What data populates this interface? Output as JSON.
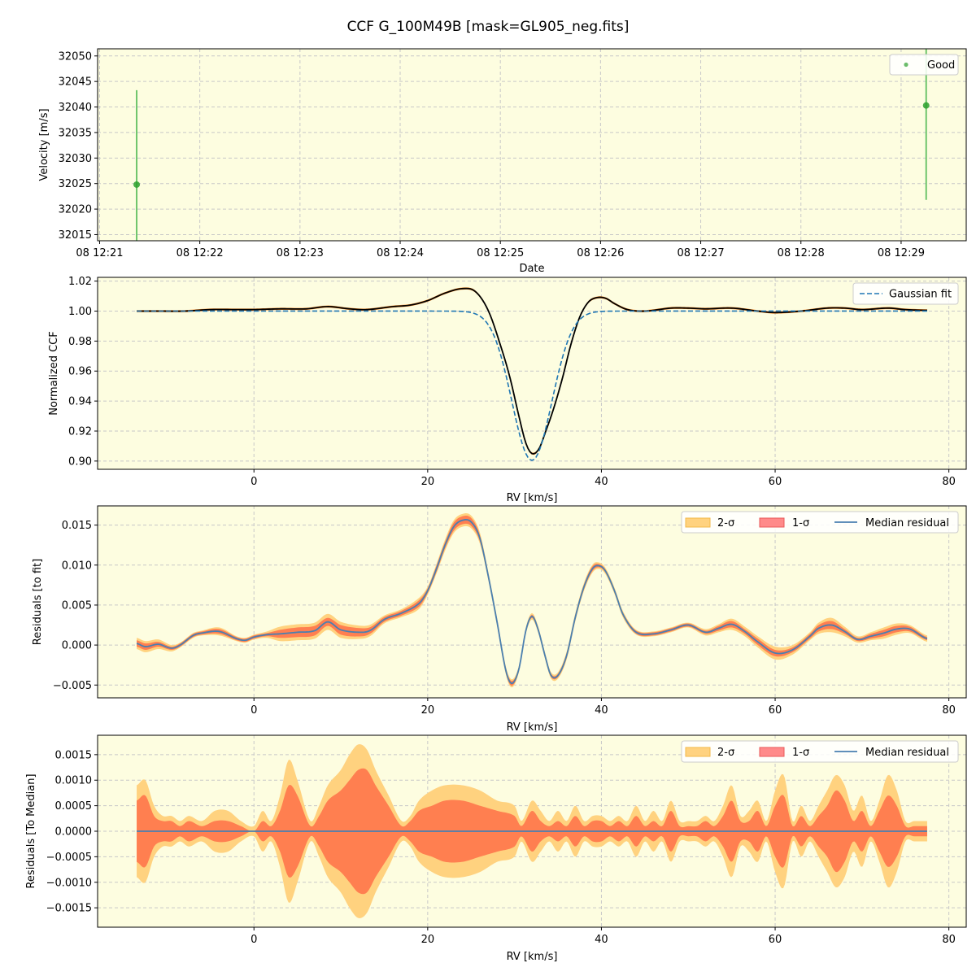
{
  "figure_title": "CCF G_100M49B [mask=GL905_neg.fits]",
  "colors": {
    "panel_bg": "#fdfde0",
    "good": "#2ca02c",
    "good_err": "#5fbf5f",
    "ccf_line": "#000000",
    "ccf_band": "#ff7f0e",
    "gauss": "#1f77b4",
    "band2": "#ffd27f",
    "band1": "#ff7f50",
    "median": "#4a7fb0",
    "grid": "#c8c8c8"
  },
  "chart_data": [
    {
      "type": "scatter",
      "xlabel": "Date",
      "ylabel": "Velocity [m/s]",
      "xticks": [
        "08 12:21",
        "08 12:22",
        "08 12:23",
        "08 12:24",
        "08 12:25",
        "08 12:26",
        "08 12:27",
        "08 12:28",
        "08 12:29"
      ],
      "xlim_minutes": [
        20.98,
        29.65
      ],
      "ylim": [
        32013.8,
        32051.4
      ],
      "yticks": [
        32015,
        32020,
        32025,
        32030,
        32035,
        32040,
        32045,
        32050
      ],
      "legend": "upper right",
      "series": [
        {
          "name": "Good",
          "points": [
            {
              "x_minutes": 21.37,
              "y": 32024.8,
              "err": 18.5
            },
            {
              "x_minutes": 29.25,
              "y": 32040.3,
              "err": 18.5
            }
          ]
        }
      ]
    },
    {
      "type": "line",
      "xlabel": "RV [km/s]",
      "ylabel": "Normalized CCF",
      "xlim": [
        -18,
        82
      ],
      "ylim": [
        0.8945,
        1.0225
      ],
      "xticks": [
        0,
        20,
        40,
        60,
        80
      ],
      "yticks": [
        0.9,
        0.92,
        0.94,
        0.96,
        0.98,
        1.0,
        1.02
      ],
      "legend": "upper right",
      "ccf": {
        "x": [
          -13.5,
          -11,
          -8,
          -5,
          -2,
          0,
          3,
          6,
          8.5,
          11,
          13,
          16,
          18,
          20,
          22,
          24,
          25.5,
          27,
          28.5,
          29.5,
          30.5,
          31.3,
          32,
          32.8,
          33.6,
          34.5,
          35.5,
          36.5,
          37.5,
          38.5,
          39.5,
          40.5,
          41.5,
          43,
          45,
          48,
          50,
          52,
          55,
          58,
          60,
          63,
          66,
          68,
          70,
          73,
          75,
          77.5
        ],
        "y": [
          1.0,
          1.0,
          1.0,
          1.001,
          1.001,
          1.001,
          1.0015,
          1.0015,
          1.003,
          1.0015,
          1.001,
          1.003,
          1.004,
          1.007,
          1.012,
          1.015,
          1.013,
          1.0,
          0.975,
          0.955,
          0.93,
          0.912,
          0.905,
          0.908,
          0.92,
          0.935,
          0.955,
          0.978,
          0.996,
          1.006,
          1.009,
          1.0085,
          1.005,
          1.001,
          1.0,
          1.002,
          1.002,
          1.0015,
          1.002,
          1.0,
          0.999,
          1.0,
          1.002,
          1.002,
          1.001,
          1.002,
          1.001,
          1.0005
        ]
      },
      "gaussian_fit": {
        "name": "Gaussian fit",
        "center": 32,
        "depth": 0.0995,
        "sigma": 2.3,
        "baseline": 1.0,
        "x_range": [
          -13.5,
          77.5
        ]
      }
    },
    {
      "type": "area",
      "xlabel": "RV [km/s]",
      "ylabel": "Residuals [to fit]",
      "xlim": [
        -18,
        82
      ],
      "ylim": [
        -0.0066,
        0.0174
      ],
      "xticks": [
        0,
        20,
        40,
        60,
        80
      ],
      "yticks": [
        -0.005,
        0.0,
        0.005,
        0.01,
        0.015
      ],
      "ytick_labels": [
        "−0.005",
        "0.000",
        "0.005",
        "0.010",
        "0.015"
      ],
      "legend": "upper right",
      "series_labels": [
        "2-σ",
        "1-σ",
        "Median residual"
      ],
      "x": [
        -13.5,
        -12.5,
        -11,
        -9.5,
        -8.5,
        -7,
        -6,
        -4,
        -2,
        -1,
        0,
        1.5,
        3,
        5,
        7,
        8.5,
        10,
        12.5,
        13.5,
        15,
        17,
        19,
        20,
        21,
        22,
        23,
        24,
        25,
        26,
        27,
        28,
        29,
        29.7,
        30.5,
        31.3,
        32,
        32.7,
        33.5,
        34.2,
        35,
        36,
        37,
        38,
        39,
        39.8,
        40.5,
        41.5,
        42.5,
        44,
        46,
        48,
        50,
        52,
        53.5,
        55,
        56.5,
        58,
        60,
        62,
        64,
        65,
        66.5,
        68,
        69.5,
        71,
        72.5,
        74,
        75.5,
        77.5
      ],
      "median": [
        0.0002,
        -0.0002,
        0.0001,
        -0.0004,
        0.0,
        0.0012,
        0.0015,
        0.0017,
        0.0008,
        0.0006,
        0.001,
        0.0013,
        0.0014,
        0.0016,
        0.0018,
        0.0029,
        0.0019,
        0.0016,
        0.0019,
        0.0032,
        0.004,
        0.0052,
        0.0068,
        0.0095,
        0.0125,
        0.0148,
        0.0156,
        0.0154,
        0.0134,
        0.0085,
        0.0028,
        -0.0032,
        -0.0048,
        -0.003,
        0.0018,
        0.0036,
        0.002,
        -0.0013,
        -0.0038,
        -0.0038,
        -0.0013,
        0.0035,
        0.0073,
        0.0096,
        0.0099,
        0.0092,
        0.0068,
        0.0038,
        0.0016,
        0.0014,
        0.0019,
        0.0025,
        0.0016,
        0.0021,
        0.0026,
        0.0017,
        0.0004,
        -0.001,
        -0.0006,
        0.0011,
        0.0021,
        0.0025,
        0.0017,
        0.0007,
        0.0011,
        0.0015,
        0.002,
        0.002,
        0.0008
      ],
      "sigma1": [
        0.0004,
        0.0004,
        0.0003,
        0.0002,
        0.0002,
        0.0002,
        0.0002,
        0.0003,
        0.0002,
        0.0002,
        0.0002,
        0.0002,
        0.0005,
        0.0006,
        0.0006,
        0.0005,
        0.0006,
        0.0005,
        0.0004,
        0.0003,
        0.0003,
        0.0004,
        0.0003,
        0.0004,
        0.0004,
        0.0005,
        0.0005,
        0.0005,
        0.0004,
        0.0003,
        0.0003,
        0.0003,
        0.0003,
        0.0002,
        0.0002,
        0.0002,
        0.0002,
        0.0002,
        0.0002,
        0.0002,
        0.0003,
        0.0003,
        0.0003,
        0.0003,
        0.0002,
        0.0002,
        0.0002,
        0.0002,
        0.0002,
        0.0002,
        0.0002,
        0.0002,
        0.0002,
        0.0003,
        0.0004,
        0.0003,
        0.0004,
        0.0004,
        0.0003,
        0.0003,
        0.0004,
        0.0005,
        0.0003,
        0.0002,
        0.0003,
        0.0004,
        0.0004,
        0.0003,
        0.0002
      ],
      "sigma2": [
        0.0007,
        0.0007,
        0.0006,
        0.0004,
        0.0003,
        0.0003,
        0.0003,
        0.0005,
        0.0003,
        0.0003,
        0.0003,
        0.0004,
        0.0009,
        0.001,
        0.001,
        0.001,
        0.001,
        0.0008,
        0.0007,
        0.0005,
        0.0005,
        0.0007,
        0.0005,
        0.0006,
        0.0007,
        0.0008,
        0.0008,
        0.0008,
        0.0007,
        0.0005,
        0.0005,
        0.0005,
        0.0005,
        0.0004,
        0.0004,
        0.0004,
        0.0004,
        0.0004,
        0.0004,
        0.0004,
        0.0005,
        0.0005,
        0.0005,
        0.0005,
        0.0004,
        0.0004,
        0.0004,
        0.0004,
        0.0003,
        0.0003,
        0.0003,
        0.0003,
        0.0004,
        0.0005,
        0.0007,
        0.0006,
        0.0007,
        0.0008,
        0.0006,
        0.0005,
        0.0007,
        0.0009,
        0.0006,
        0.0004,
        0.0005,
        0.0007,
        0.0007,
        0.0005,
        0.0004
      ]
    },
    {
      "type": "area",
      "xlabel": "RV [km/s]",
      "ylabel": "Residuals [To Median]",
      "xlim": [
        -18,
        82
      ],
      "ylim": [
        -0.00188,
        0.00188
      ],
      "xticks": [
        0,
        20,
        40,
        60,
        80
      ],
      "yticks": [
        -0.0015,
        -0.001,
        -0.0005,
        0.0,
        0.0005,
        0.001,
        0.0015
      ],
      "ytick_labels": [
        "−0.0015",
        "−0.0010",
        "−0.0005",
        "0.0000",
        "0.0005",
        "0.0010",
        "0.0015"
      ],
      "legend": "upper right",
      "series_labels": [
        "2-σ",
        "1-σ",
        "Median residual"
      ],
      "x": [
        -13.5,
        -12.5,
        -11.5,
        -10.5,
        -9.5,
        -8.5,
        -7.5,
        -6,
        -4.5,
        -3,
        -1.5,
        0,
        1,
        2,
        3,
        4,
        5,
        6.5,
        7.5,
        8.5,
        10,
        11,
        12,
        13,
        14,
        15.5,
        17,
        18,
        19,
        20.5,
        22,
        24,
        26,
        28,
        30,
        30.8,
        32,
        33,
        34,
        35,
        36,
        37,
        38,
        39,
        40,
        41,
        42,
        43,
        44,
        45,
        46,
        47,
        48,
        49,
        50,
        51,
        52,
        53,
        54,
        55,
        56,
        57,
        58,
        59,
        60,
        61,
        62,
        63,
        64,
        65,
        66,
        67,
        68,
        69,
        70,
        71,
        72,
        73,
        74,
        75,
        76,
        77.5
      ],
      "sigma1": [
        0.0006,
        0.0007,
        0.0003,
        0.0002,
        0.0002,
        0.0001,
        0.0002,
        0.0001,
        0.0002,
        0.0002,
        0.0001,
        0.0,
        0.0002,
        0.0001,
        0.0004,
        0.0009,
        0.0007,
        0.0001,
        0.0003,
        0.0006,
        0.0008,
        0.001,
        0.0012,
        0.0012,
        0.0009,
        0.0005,
        0.0001,
        0.0002,
        0.0004,
        0.0005,
        0.0006,
        0.0006,
        0.0005,
        0.0004,
        0.0003,
        0.0001,
        0.0004,
        0.0002,
        0.0001,
        0.0002,
        0.0001,
        0.0003,
        0.0001,
        0.0002,
        0.0002,
        0.0001,
        0.0002,
        0.0001,
        0.0003,
        0.0001,
        0.0002,
        0.0001,
        0.0004,
        0.0001,
        0.0001,
        0.0001,
        0.0002,
        0.0001,
        0.0003,
        0.0006,
        0.0002,
        0.0002,
        0.0004,
        0.0001,
        0.0005,
        0.0007,
        0.0001,
        0.0003,
        0.0001,
        0.0003,
        0.0005,
        0.0008,
        0.0006,
        0.0002,
        0.0004,
        0.0001,
        0.0004,
        0.0007,
        0.0005,
        0.0001,
        0.0001,
        0.0001
      ],
      "sigma2": [
        0.0009,
        0.001,
        0.0005,
        0.0003,
        0.0003,
        0.0002,
        0.0003,
        0.0002,
        0.0004,
        0.0004,
        0.0002,
        0.0001,
        0.0004,
        0.0002,
        0.0007,
        0.0014,
        0.001,
        0.0002,
        0.0005,
        0.0009,
        0.0012,
        0.0015,
        0.0017,
        0.0016,
        0.0012,
        0.0007,
        0.0002,
        0.0003,
        0.0006,
        0.0008,
        0.0009,
        0.0009,
        0.0008,
        0.0006,
        0.0005,
        0.0002,
        0.0006,
        0.0004,
        0.0002,
        0.0004,
        0.0002,
        0.0005,
        0.0002,
        0.0003,
        0.0003,
        0.0002,
        0.0003,
        0.0002,
        0.0005,
        0.0002,
        0.0004,
        0.0002,
        0.0006,
        0.0002,
        0.0002,
        0.0002,
        0.0003,
        0.0002,
        0.0005,
        0.0009,
        0.0003,
        0.0004,
        0.0006,
        0.0002,
        0.0008,
        0.0011,
        0.0002,
        0.0005,
        0.0002,
        0.0005,
        0.0008,
        0.0011,
        0.0009,
        0.0004,
        0.0007,
        0.0002,
        0.0006,
        0.0011,
        0.0008,
        0.0002,
        0.0002,
        0.0002
      ]
    }
  ]
}
